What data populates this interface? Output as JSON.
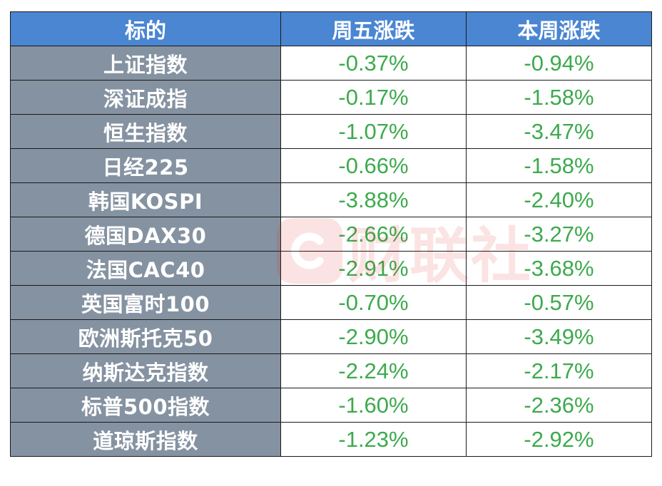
{
  "headers": [
    "标的",
    "周五涨跌",
    "本周涨跌"
  ],
  "rows": [
    {
      "name": "上证指数",
      "friday": "-0.37%",
      "week": "-0.94%"
    },
    {
      "name": "深证成指",
      "friday": "-0.17%",
      "week": "-1.58%"
    },
    {
      "name": "恒生指数",
      "friday": "-1.07%",
      "week": "-3.47%"
    },
    {
      "name": "日经225",
      "friday": "-0.66%",
      "week": "-1.58%"
    },
    {
      "name": "韩国KOSPI",
      "friday": "-3.88%",
      "week": "-2.40%"
    },
    {
      "name": "德国DAX30",
      "friday": "-2.66%",
      "week": "-3.27%"
    },
    {
      "name": "法国CAC40",
      "friday": "-2.91%",
      "week": "-3.68%"
    },
    {
      "name": "英国富时100",
      "friday": "-0.70%",
      "week": "-0.57%"
    },
    {
      "name": "欧洲斯托克50",
      "friday": "-2.90%",
      "week": "-3.49%"
    },
    {
      "name": "纳斯达克指数",
      "friday": "-2.24%",
      "week": "-2.17%"
    },
    {
      "name": "标普500指数",
      "friday": "-1.60%",
      "week": "-2.36%"
    },
    {
      "name": "道琼斯指数",
      "friday": "-1.23%",
      "week": "-2.92%"
    }
  ],
  "watermark": {
    "text": "财联社",
    "icon": "cls-logo-icon"
  },
  "colors": {
    "header_bg": "#4a86d2",
    "name_bg": "#8592a1",
    "value_text": "#3daa4d",
    "watermark": "#d9261c"
  }
}
